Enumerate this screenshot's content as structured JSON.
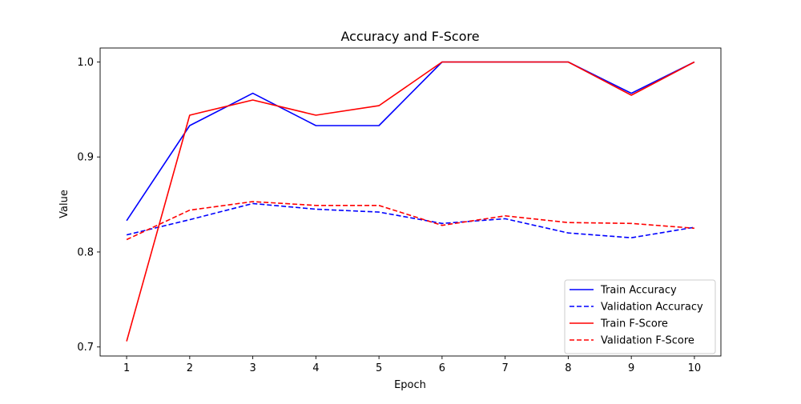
{
  "chart_data": {
    "type": "line",
    "title": "Accuracy and F-Score",
    "xlabel": "Epoch",
    "ylabel": "Value",
    "x": [
      1,
      2,
      3,
      4,
      5,
      6,
      7,
      8,
      9,
      10
    ],
    "xlim": [
      0.58,
      10.42
    ],
    "ylim": [
      0.6905,
      1.0147
    ],
    "xticks": [
      1,
      2,
      3,
      4,
      5,
      6,
      7,
      8,
      9,
      10
    ],
    "yticks": [
      0.7,
      0.8,
      0.9,
      1.0
    ],
    "ytick_labels": [
      "0.7",
      "0.8",
      "0.9",
      "1.0"
    ],
    "grid": false,
    "legend_position": "lower-right",
    "series": [
      {
        "name": "Train Accuracy",
        "color": "#0000ff",
        "style": "solid",
        "values": [
          0.833,
          0.933,
          0.967,
          0.933,
          0.933,
          1.0,
          1.0,
          1.0,
          0.967,
          1.0
        ]
      },
      {
        "name": "Validation Accuracy",
        "color": "#0000ff",
        "style": "dashed",
        "values": [
          0.818,
          0.834,
          0.851,
          0.845,
          0.842,
          0.83,
          0.835,
          0.82,
          0.815,
          0.826
        ]
      },
      {
        "name": "Train F-Score",
        "color": "#ff0000",
        "style": "solid",
        "values": [
          0.706,
          0.944,
          0.96,
          0.944,
          0.954,
          1.0,
          1.0,
          1.0,
          0.965,
          1.0
        ]
      },
      {
        "name": "Validation F-Score",
        "color": "#ff0000",
        "style": "dashed",
        "values": [
          0.813,
          0.844,
          0.853,
          0.849,
          0.849,
          0.828,
          0.838,
          0.831,
          0.83,
          0.825
        ]
      }
    ]
  }
}
